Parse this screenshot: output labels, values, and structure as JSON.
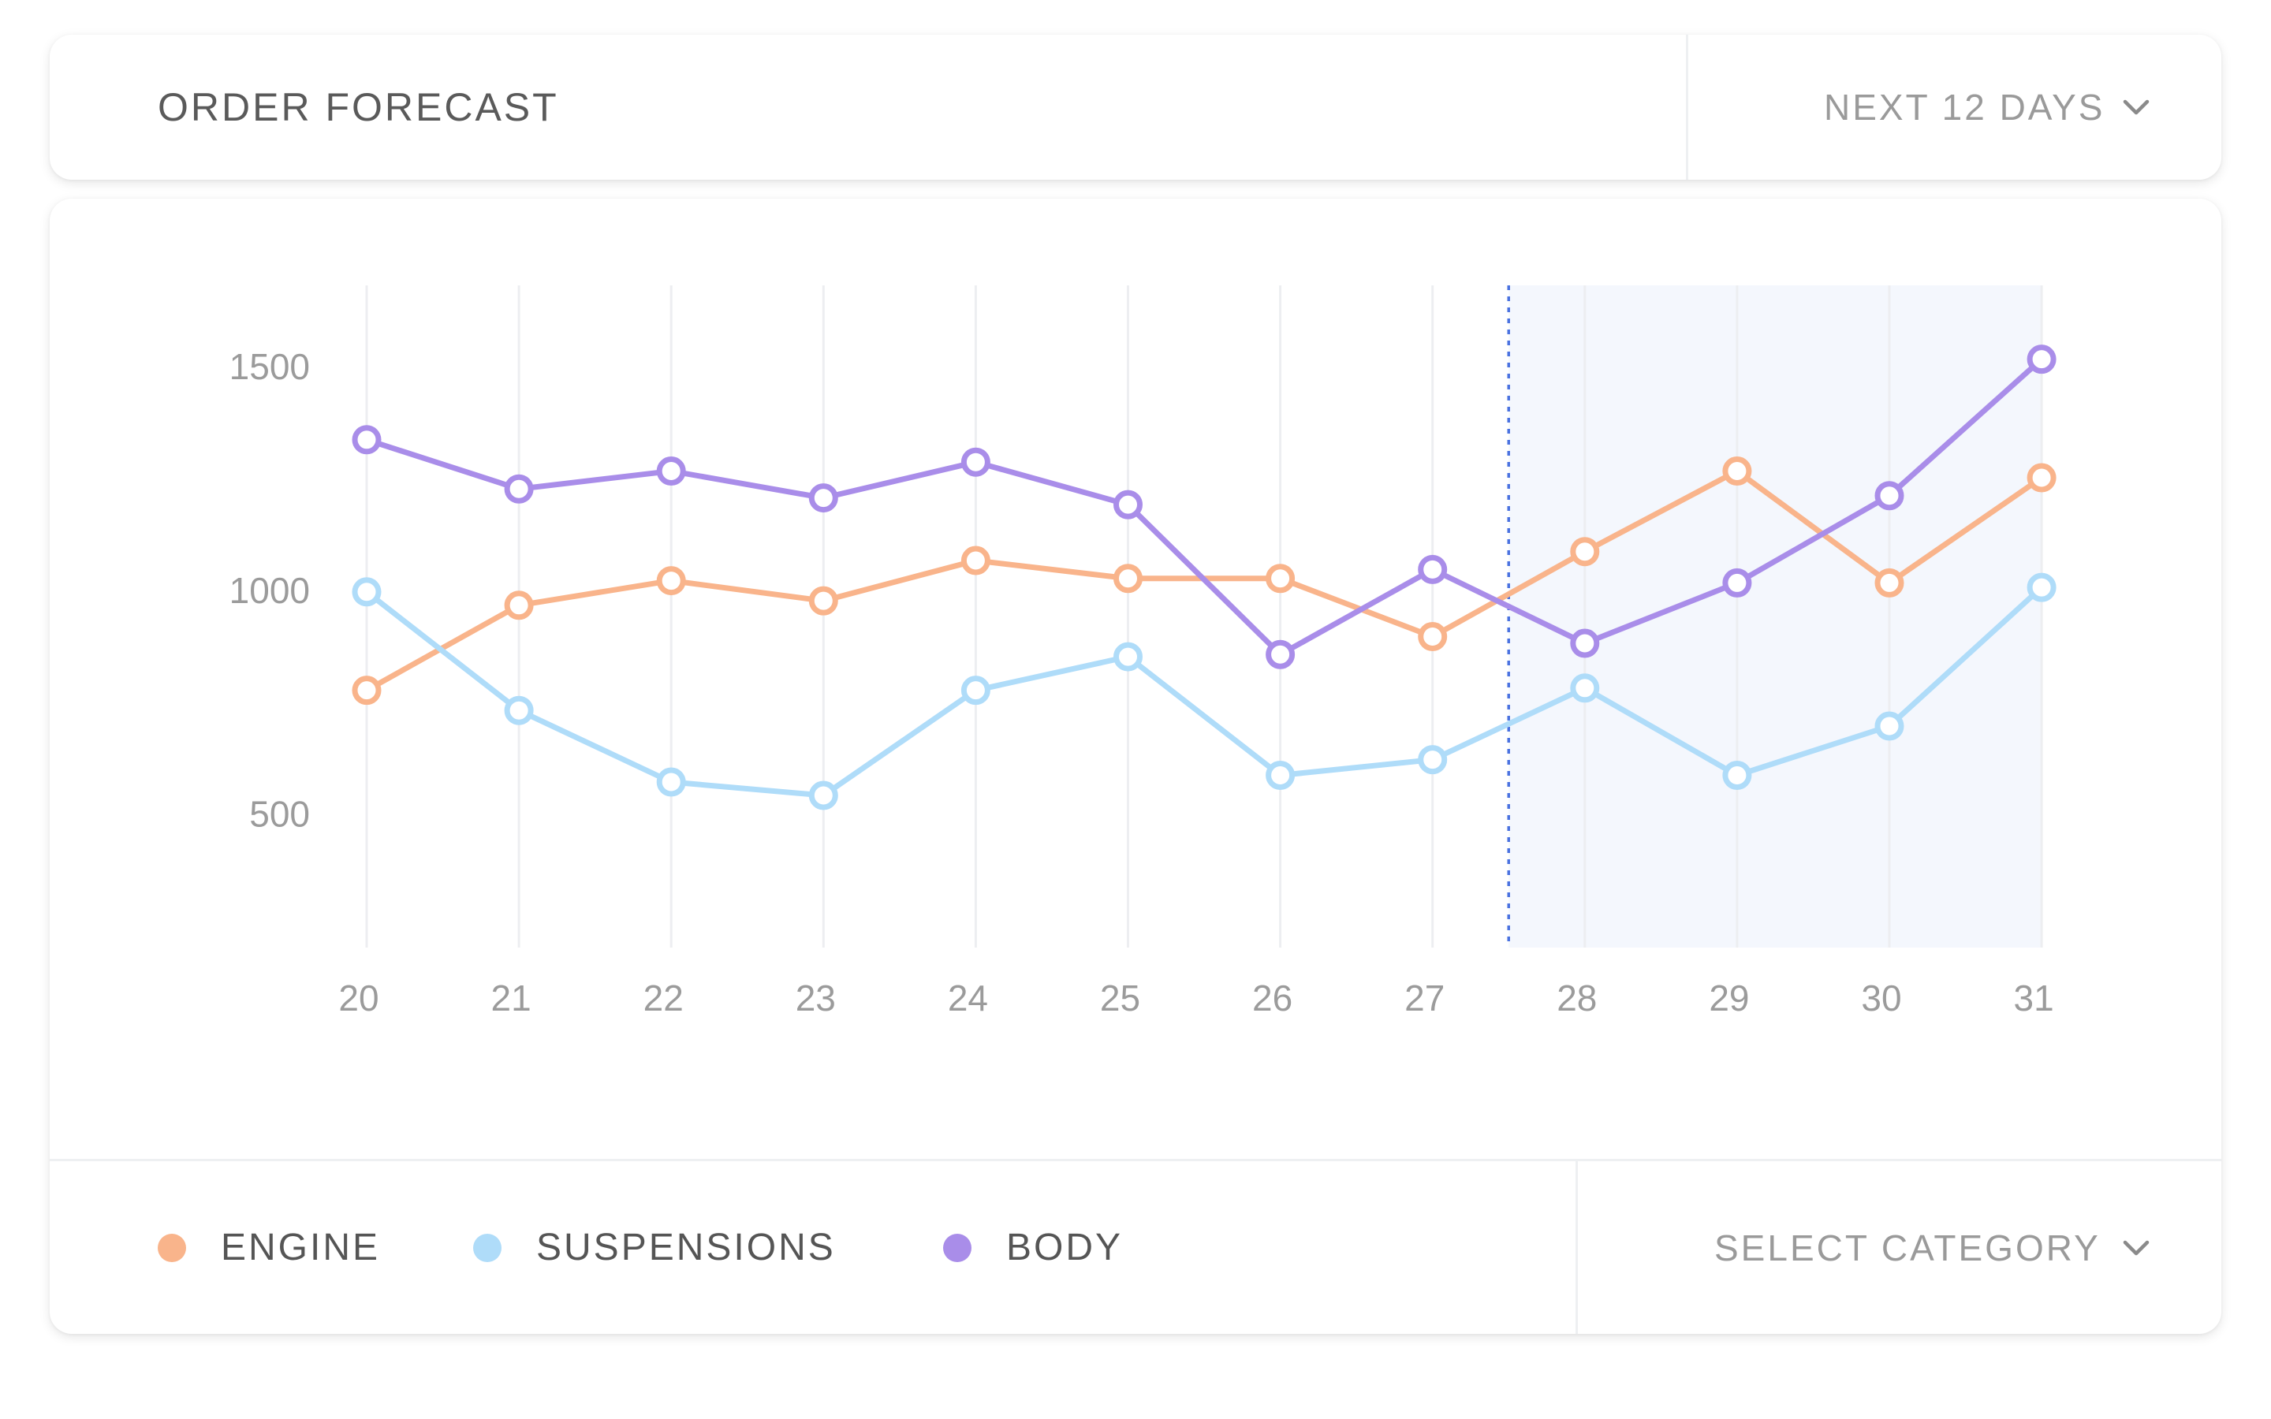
{
  "header": {
    "title": "ORDER FORECAST",
    "period_dropdown": {
      "selected": "NEXT 12 DAYS"
    }
  },
  "footer": {
    "category_dropdown": {
      "selected": "SELECT CATEGORY"
    }
  },
  "colors": {
    "engine": "#f9b48b",
    "suspensions": "#afdcf9",
    "body": "#a98de9",
    "forecast_marker": "#4a72e0",
    "forecast_region": "#f4f7fd"
  },
  "chart_data": {
    "type": "line",
    "x": [
      "20",
      "21",
      "22",
      "23",
      "24",
      "25",
      "26",
      "27",
      "28",
      "29",
      "30",
      "31"
    ],
    "y_ticks": [
      "500",
      "1000",
      "1500"
    ],
    "ylim": [
      200,
      1680
    ],
    "grid": "vertical",
    "forecast_start": 27.5,
    "legend_placement": "bottom-left",
    "series": [
      {
        "name": "ENGINE",
        "color_key": "engine",
        "values": [
          775,
          965,
          1020,
          975,
          1065,
          1025,
          1025,
          895,
          1085,
          1265,
          1015,
          1250
        ]
      },
      {
        "name": "SUSPENSIONS",
        "color_key": "suspensions",
        "values": [
          995,
          730,
          570,
          540,
          775,
          850,
          585,
          620,
          780,
          585,
          695,
          1005
        ]
      },
      {
        "name": "BODY",
        "color_key": "body",
        "values": [
          1335,
          1225,
          1265,
          1205,
          1285,
          1190,
          855,
          1045,
          880,
          1015,
          1210,
          1515
        ]
      }
    ]
  }
}
